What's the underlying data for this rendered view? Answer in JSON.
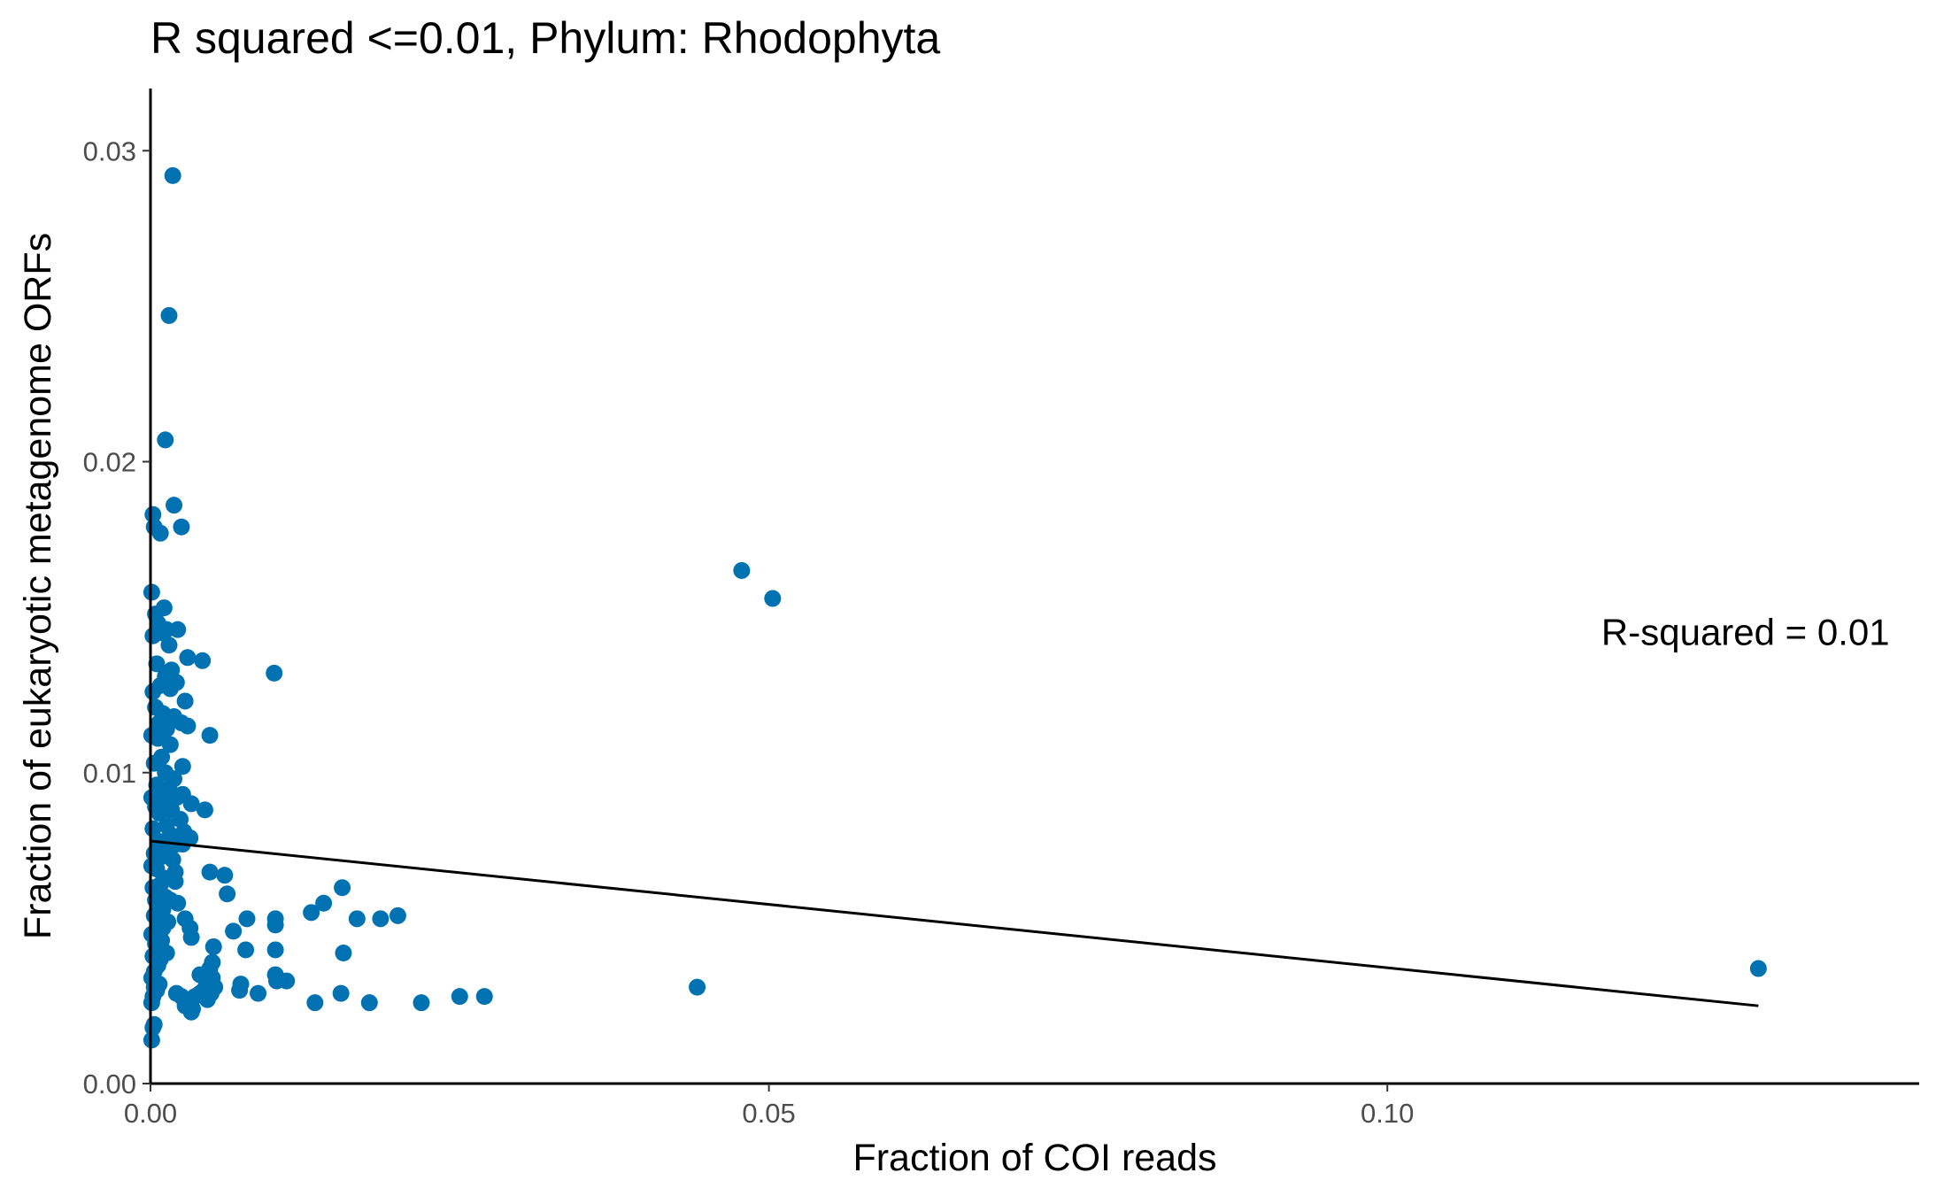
{
  "chart_data": {
    "type": "scatter",
    "title": "R squared <=0.01, Phylum:  Rhodophyta",
    "xlabel": "Fraction of COI reads",
    "ylabel": "Fraction of eukaryotic metagenome ORFs",
    "xlim": [
      0,
      0.143
    ],
    "ylim": [
      0,
      0.032
    ],
    "x_ticks": [
      0,
      0.05,
      0.1
    ],
    "x_tick_labels": [
      "0.00",
      "0.05",
      "0.10"
    ],
    "y_ticks": [
      0,
      0.01,
      0.02,
      0.03
    ],
    "y_tick_labels": [
      "0.00",
      "0.01",
      "0.02",
      "0.03"
    ],
    "grid": false,
    "legend": "none",
    "point_color": "#0072B2",
    "line_color": "#000000",
    "annotation": {
      "text": "R-squared =  0.01",
      "x": 0.1173,
      "y": 0.0141
    },
    "regression_line": {
      "x": [
        0,
        0.13
      ],
      "y": [
        0.0078,
        0.0025
      ]
    },
    "points": [
      [
        0.0018,
        0.0292
      ],
      [
        0.0015,
        0.0247
      ],
      [
        0.0012,
        0.0207
      ],
      [
        0.0019,
        0.0186
      ],
      [
        0.0025,
        0.0179
      ],
      [
        0.0002,
        0.0183
      ],
      [
        0.0003,
        0.0179
      ],
      [
        0.0008,
        0.0177
      ],
      [
        0.0478,
        0.0165
      ],
      [
        0.0503,
        0.0156
      ],
      [
        0.0001,
        0.0158
      ],
      [
        0.0004,
        0.0151
      ],
      [
        0.0011,
        0.0153
      ],
      [
        0.0006,
        0.0148
      ],
      [
        0.0013,
        0.0146
      ],
      [
        0.0009,
        0.0145
      ],
      [
        0.0022,
        0.0146
      ],
      [
        0.0002,
        0.0144
      ],
      [
        0.0015,
        0.0141
      ],
      [
        0.003,
        0.0137
      ],
      [
        0.0042,
        0.0136
      ],
      [
        0.0005,
        0.0135
      ],
      [
        0.0017,
        0.0133
      ],
      [
        0.01,
        0.0132
      ],
      [
        0.0012,
        0.0131
      ],
      [
        0.0021,
        0.0129
      ],
      [
        0.0008,
        0.0128
      ],
      [
        0.0016,
        0.0127
      ],
      [
        0.0002,
        0.0126
      ],
      [
        0.0028,
        0.0123
      ],
      [
        0.0004,
        0.0121
      ],
      [
        0.001,
        0.0119
      ],
      [
        0.0019,
        0.0118
      ],
      [
        0.0025,
        0.0116
      ],
      [
        0.0007,
        0.0116
      ],
      [
        0.003,
        0.0115
      ],
      [
        0.0013,
        0.0114
      ],
      [
        0.0001,
        0.0112
      ],
      [
        0.0048,
        0.0112
      ],
      [
        0.0006,
        0.0111
      ],
      [
        0.0016,
        0.0109
      ],
      [
        0.0009,
        0.0105
      ],
      [
        0.0003,
        0.0103
      ],
      [
        0.0026,
        0.0102
      ],
      [
        0.0012,
        0.01
      ],
      [
        0.0019,
        0.0098
      ],
      [
        0.0005,
        0.0096
      ],
      [
        0.0015,
        0.0095
      ],
      [
        0.0008,
        0.0094
      ],
      [
        0.0026,
        0.0093
      ],
      [
        0.0001,
        0.0092
      ],
      [
        0.0021,
        0.0092
      ],
      [
        0.0011,
        0.0091
      ],
      [
        0.0033,
        0.009
      ],
      [
        0.0004,
        0.0089
      ],
      [
        0.0017,
        0.0088
      ],
      [
        0.0044,
        0.0088
      ],
      [
        0.0007,
        0.0087
      ],
      [
        0.0024,
        0.0085
      ],
      [
        0.0013,
        0.0083
      ],
      [
        0.0002,
        0.0082
      ],
      [
        0.0027,
        0.0081
      ],
      [
        0.0016,
        0.008
      ],
      [
        0.0032,
        0.0079
      ],
      [
        0.0006,
        0.0078
      ],
      [
        0.0021,
        0.0077
      ],
      [
        0.0026,
        0.0077
      ],
      [
        0.0011,
        0.0075
      ],
      [
        0.0003,
        0.0074
      ],
      [
        0.0009,
        0.0073
      ],
      [
        0.0018,
        0.0072
      ],
      [
        0.0001,
        0.007
      ],
      [
        0.0005,
        0.0069
      ],
      [
        0.002,
        0.0068
      ],
      [
        0.0048,
        0.0068
      ],
      [
        0.006,
        0.0067
      ],
      [
        0.0013,
        0.0066
      ],
      [
        0.002,
        0.0065
      ],
      [
        0.0008,
        0.0064
      ],
      [
        0.0002,
        0.0063
      ],
      [
        0.0155,
        0.0063
      ],
      [
        0.0062,
        0.0061
      ],
      [
        0.0012,
        0.006
      ],
      [
        0.0004,
        0.0059
      ],
      [
        0.0016,
        0.0059
      ],
      [
        0.0022,
        0.0058
      ],
      [
        0.014,
        0.0058
      ],
      [
        0.0007,
        0.0057
      ],
      [
        0.001,
        0.0056
      ],
      [
        0.013,
        0.0055
      ],
      [
        0.02,
        0.0054
      ],
      [
        0.0003,
        0.0054
      ],
      [
        0.0028,
        0.0053
      ],
      [
        0.0101,
        0.0053
      ],
      [
        0.0167,
        0.0053
      ],
      [
        0.0186,
        0.0053
      ],
      [
        0.0078,
        0.0053
      ],
      [
        0.0014,
        0.0052
      ],
      [
        0.0006,
        0.0051
      ],
      [
        0.0101,
        0.0051
      ],
      [
        0.0032,
        0.005
      ],
      [
        0.001,
        0.005
      ],
      [
        0.0067,
        0.0049
      ],
      [
        0.0001,
        0.0048
      ],
      [
        0.0033,
        0.0047
      ],
      [
        0.0009,
        0.0046
      ],
      [
        0.0004,
        0.0045
      ],
      [
        0.0051,
        0.0044
      ],
      [
        0.0101,
        0.0043
      ],
      [
        0.0077,
        0.0043
      ],
      [
        0.0013,
        0.0042
      ],
      [
        0.0156,
        0.0042
      ],
      [
        0.0002,
        0.0041
      ],
      [
        0.0008,
        0.004
      ],
      [
        0.005,
        0.0039
      ],
      [
        0.0006,
        0.0038
      ],
      [
        0.0048,
        0.0037
      ],
      [
        0.0003,
        0.0036
      ],
      [
        0.13,
        0.0037
      ],
      [
        0.004,
        0.0035
      ],
      [
        0.0101,
        0.0035
      ],
      [
        0.005,
        0.0034
      ],
      [
        0.0001,
        0.0034
      ],
      [
        0.011,
        0.0033
      ],
      [
        0.0102,
        0.0033
      ],
      [
        0.0045,
        0.0033
      ],
      [
        0.0007,
        0.0032
      ],
      [
        0.0073,
        0.0032
      ],
      [
        0.0052,
        0.0031
      ],
      [
        0.0442,
        0.0031
      ],
      [
        0.0003,
        0.0031
      ],
      [
        0.0072,
        0.003
      ],
      [
        0.0043,
        0.003
      ],
      [
        0.0005,
        0.003
      ],
      [
        0.004,
        0.0029
      ],
      [
        0.0021,
        0.0029
      ],
      [
        0.0049,
        0.0029
      ],
      [
        0.0087,
        0.0029
      ],
      [
        0.0154,
        0.0029
      ],
      [
        0.0002,
        0.0028
      ],
      [
        0.027,
        0.0028
      ],
      [
        0.025,
        0.0028
      ],
      [
        0.0025,
        0.0028
      ],
      [
        0.0036,
        0.0028
      ],
      [
        0.0046,
        0.0027
      ],
      [
        0.003,
        0.0027
      ],
      [
        0.0001,
        0.0026
      ],
      [
        0.0133,
        0.0026
      ],
      [
        0.0177,
        0.0026
      ],
      [
        0.0219,
        0.0026
      ],
      [
        0.0028,
        0.0025
      ],
      [
        0.0034,
        0.0024
      ],
      [
        0.0033,
        0.0023
      ],
      [
        0.0003,
        0.0019
      ],
      [
        0.0002,
        0.0018
      ],
      [
        0.0001,
        0.0014
      ]
    ]
  }
}
